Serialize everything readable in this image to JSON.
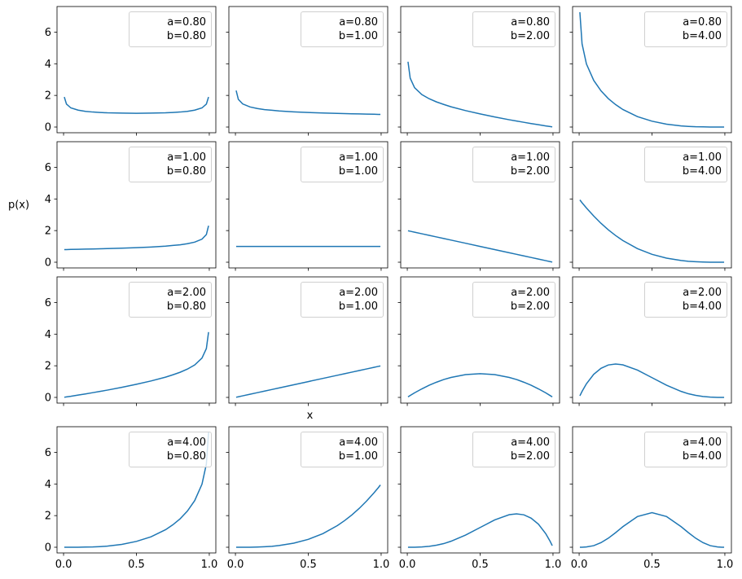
{
  "chart_data": [
    {
      "type": "line",
      "x": [
        0.005,
        0.02,
        0.05,
        0.1,
        0.15,
        0.2,
        0.25,
        0.3,
        0.4,
        0.5,
        0.6,
        0.7,
        0.75,
        0.8,
        0.85,
        0.9,
        0.95,
        0.98,
        0.995
      ],
      "series": [
        {
          "name": "a=0.80\nb=0.80",
          "color": "#1f77b4",
          "values": [
            1.9,
            1.45,
            1.21,
            1.07,
            0.99,
            0.95,
            0.92,
            0.9,
            0.88,
            0.87,
            0.88,
            0.9,
            0.92,
            0.95,
            0.99,
            1.07,
            1.21,
            1.45,
            1.9
          ]
        }
      ],
      "xlim": [
        -0.045,
        1.045
      ],
      "ylim": [
        -0.36,
        7.62
      ],
      "xticks": [
        0,
        0.5,
        1
      ],
      "yticks": [
        0,
        2,
        4,
        6
      ],
      "show_xticklabels": false,
      "show_yticklabels": true
    },
    {
      "type": "line",
      "x": [
        0.005,
        0.02,
        0.05,
        0.1,
        0.15,
        0.2,
        0.25,
        0.3,
        0.4,
        0.5,
        0.6,
        0.7,
        0.75,
        0.8,
        0.85,
        0.9,
        0.95,
        0.98,
        0.995
      ],
      "series": [
        {
          "name": "a=0.80\nb=1.00",
          "color": "#1f77b4",
          "values": [
            2.31,
            1.75,
            1.46,
            1.27,
            1.17,
            1.1,
            1.06,
            1.02,
            0.96,
            0.92,
            0.89,
            0.86,
            0.85,
            0.84,
            0.83,
            0.82,
            0.81,
            0.8,
            0.8
          ]
        }
      ],
      "xlim": [
        -0.045,
        1.045
      ],
      "ylim": [
        -0.36,
        7.62
      ],
      "xticks": [
        0,
        0.5,
        1
      ],
      "yticks": [
        0,
        2,
        4,
        6
      ],
      "show_xticklabels": false,
      "show_yticklabels": false
    },
    {
      "type": "line",
      "x": [
        0.005,
        0.02,
        0.05,
        0.1,
        0.15,
        0.2,
        0.25,
        0.3,
        0.4,
        0.5,
        0.6,
        0.7,
        0.75,
        0.8,
        0.85,
        0.9,
        0.95,
        0.98,
        0.995
      ],
      "series": [
        {
          "name": "a=0.80\nb=2.00",
          "color": "#1f77b4",
          "values": [
            4.13,
            3.09,
            2.49,
            2.05,
            1.79,
            1.59,
            1.43,
            1.28,
            1.04,
            0.83,
            0.64,
            0.46,
            0.38,
            0.3,
            0.22,
            0.15,
            0.07,
            0.03,
            0.01
          ]
        }
      ],
      "xlim": [
        -0.045,
        1.045
      ],
      "ylim": [
        -0.36,
        7.62
      ],
      "xticks": [
        0,
        0.5,
        1
      ],
      "yticks": [
        0,
        2,
        4,
        6
      ],
      "show_xticklabels": false,
      "show_yticklabels": false
    },
    {
      "type": "line",
      "x": [
        0.005,
        0.02,
        0.05,
        0.1,
        0.15,
        0.2,
        0.25,
        0.3,
        0.4,
        0.5,
        0.6,
        0.7,
        0.75,
        0.8,
        0.85,
        0.9,
        0.95,
        0.98,
        0.995
      ],
      "series": [
        {
          "name": "a=0.80\nb=4.00",
          "color": "#1f77b4",
          "values": [
            7.26,
            5.26,
            3.99,
            2.95,
            2.29,
            1.8,
            1.42,
            1.11,
            0.66,
            0.37,
            0.18,
            0.07,
            0.04,
            0.02,
            0.01,
            0,
            0,
            0,
            0
          ]
        }
      ],
      "xlim": [
        -0.045,
        1.045
      ],
      "ylim": [
        -0.36,
        7.62
      ],
      "xticks": [
        0,
        0.5,
        1
      ],
      "yticks": [
        0,
        2,
        4,
        6
      ],
      "show_xticklabels": false,
      "show_yticklabels": false
    },
    {
      "type": "line",
      "x": [
        0.005,
        0.02,
        0.05,
        0.1,
        0.15,
        0.2,
        0.25,
        0.3,
        0.4,
        0.5,
        0.6,
        0.7,
        0.75,
        0.8,
        0.85,
        0.9,
        0.95,
        0.98,
        0.995
      ],
      "series": [
        {
          "name": "a=1.00\nb=0.80",
          "color": "#1f77b4",
          "values": [
            0.8,
            0.8,
            0.81,
            0.82,
            0.83,
            0.84,
            0.85,
            0.86,
            0.89,
            0.92,
            0.96,
            1.02,
            1.06,
            1.1,
            1.17,
            1.27,
            1.46,
            1.75,
            2.31
          ]
        }
      ],
      "xlim": [
        -0.045,
        1.045
      ],
      "ylim": [
        -0.36,
        7.62
      ],
      "xticks": [
        0,
        0.5,
        1
      ],
      "yticks": [
        0,
        2,
        4,
        6
      ],
      "show_xticklabels": false,
      "show_yticklabels": true,
      "ylabel": "p(x)"
    },
    {
      "type": "line",
      "x": [
        0.005,
        0.02,
        0.05,
        0.1,
        0.15,
        0.2,
        0.25,
        0.3,
        0.4,
        0.5,
        0.6,
        0.7,
        0.75,
        0.8,
        0.85,
        0.9,
        0.95,
        0.98,
        0.995
      ],
      "series": [
        {
          "name": "a=1.00\nb=1.00",
          "color": "#1f77b4",
          "values": [
            1,
            1,
            1,
            1,
            1,
            1,
            1,
            1,
            1,
            1,
            1,
            1,
            1,
            1,
            1,
            1,
            1,
            1,
            1
          ]
        }
      ],
      "xlim": [
        -0.045,
        1.045
      ],
      "ylim": [
        -0.36,
        7.62
      ],
      "xticks": [
        0,
        0.5,
        1
      ],
      "yticks": [
        0,
        2,
        4,
        6
      ],
      "show_xticklabels": false,
      "show_yticklabels": false
    },
    {
      "type": "line",
      "x": [
        0.005,
        0.02,
        0.05,
        0.1,
        0.15,
        0.2,
        0.25,
        0.3,
        0.4,
        0.5,
        0.6,
        0.7,
        0.75,
        0.8,
        0.85,
        0.9,
        0.95,
        0.98,
        0.995
      ],
      "series": [
        {
          "name": "a=1.00\nb=2.00",
          "color": "#1f77b4",
          "values": [
            1.99,
            1.96,
            1.9,
            1.8,
            1.7,
            1.6,
            1.5,
            1.4,
            1.2,
            1,
            0.8,
            0.6,
            0.5,
            0.4,
            0.3,
            0.2,
            0.1,
            0.04,
            0.01
          ]
        }
      ],
      "xlim": [
        -0.045,
        1.045
      ],
      "ylim": [
        -0.36,
        7.62
      ],
      "xticks": [
        0,
        0.5,
        1
      ],
      "yticks": [
        0,
        2,
        4,
        6
      ],
      "show_xticklabels": false,
      "show_yticklabels": false
    },
    {
      "type": "line",
      "x": [
        0.005,
        0.02,
        0.05,
        0.1,
        0.15,
        0.2,
        0.25,
        0.3,
        0.4,
        0.5,
        0.6,
        0.7,
        0.75,
        0.8,
        0.85,
        0.9,
        0.95,
        0.98,
        0.995
      ],
      "series": [
        {
          "name": "a=1.00\nb=4.00",
          "color": "#1f77b4",
          "values": [
            3.94,
            3.76,
            3.43,
            2.92,
            2.46,
            2.05,
            1.69,
            1.37,
            0.86,
            0.5,
            0.26,
            0.11,
            0.06,
            0.03,
            0.01,
            0,
            0,
            0,
            0
          ]
        }
      ],
      "xlim": [
        -0.045,
        1.045
      ],
      "ylim": [
        -0.36,
        7.62
      ],
      "xticks": [
        0,
        0.5,
        1
      ],
      "yticks": [
        0,
        2,
        4,
        6
      ],
      "show_xticklabels": false,
      "show_yticklabels": false
    },
    {
      "type": "line",
      "x": [
        0.005,
        0.02,
        0.05,
        0.1,
        0.15,
        0.2,
        0.25,
        0.3,
        0.4,
        0.5,
        0.6,
        0.7,
        0.75,
        0.8,
        0.85,
        0.9,
        0.95,
        0.98,
        0.995
      ],
      "series": [
        {
          "name": "a=2.00\nb=0.80",
          "color": "#1f77b4",
          "values": [
            0.01,
            0.03,
            0.07,
            0.15,
            0.22,
            0.3,
            0.38,
            0.46,
            0.64,
            0.83,
            1.04,
            1.28,
            1.43,
            1.59,
            1.79,
            2.05,
            2.49,
            3.09,
            4.13
          ]
        }
      ],
      "xlim": [
        -0.045,
        1.045
      ],
      "ylim": [
        -0.36,
        7.62
      ],
      "xticks": [
        0,
        0.5,
        1
      ],
      "yticks": [
        0,
        2,
        4,
        6
      ],
      "show_xticklabels": false,
      "show_yticklabels": true
    },
    {
      "type": "line",
      "x": [
        0.005,
        0.02,
        0.05,
        0.1,
        0.15,
        0.2,
        0.25,
        0.3,
        0.4,
        0.5,
        0.6,
        0.7,
        0.75,
        0.8,
        0.85,
        0.9,
        0.95,
        0.98,
        0.995
      ],
      "series": [
        {
          "name": "a=2.00\nb=1.00",
          "color": "#1f77b4",
          "values": [
            0.01,
            0.04,
            0.1,
            0.2,
            0.3,
            0.4,
            0.5,
            0.6,
            0.8,
            1,
            1.2,
            1.4,
            1.5,
            1.6,
            1.7,
            1.8,
            1.9,
            1.96,
            1.99
          ]
        }
      ],
      "xlim": [
        -0.045,
        1.045
      ],
      "ylim": [
        -0.36,
        7.62
      ],
      "xticks": [
        0,
        0.5,
        1
      ],
      "yticks": [
        0,
        2,
        4,
        6
      ],
      "show_xticklabels": false,
      "show_yticklabels": false,
      "xlabel": "x"
    },
    {
      "type": "line",
      "x": [
        0.005,
        0.02,
        0.05,
        0.1,
        0.15,
        0.2,
        0.25,
        0.3,
        0.4,
        0.5,
        0.6,
        0.7,
        0.75,
        0.8,
        0.85,
        0.9,
        0.95,
        0.98,
        0.995
      ],
      "series": [
        {
          "name": "a=2.00\nb=2.00",
          "color": "#1f77b4",
          "values": [
            0.03,
            0.12,
            0.29,
            0.54,
            0.77,
            0.96,
            1.13,
            1.26,
            1.44,
            1.5,
            1.44,
            1.26,
            1.13,
            0.96,
            0.77,
            0.54,
            0.29,
            0.12,
            0.03
          ]
        }
      ],
      "xlim": [
        -0.045,
        1.045
      ],
      "ylim": [
        -0.36,
        7.62
      ],
      "xticks": [
        0,
        0.5,
        1
      ],
      "yticks": [
        0,
        2,
        4,
        6
      ],
      "show_xticklabels": false,
      "show_yticklabels": false
    },
    {
      "type": "line",
      "x": [
        0.005,
        0.02,
        0.05,
        0.1,
        0.15,
        0.2,
        0.25,
        0.3,
        0.4,
        0.5,
        0.6,
        0.7,
        0.75,
        0.8,
        0.85,
        0.9,
        0.95,
        0.98,
        0.995
      ],
      "series": [
        {
          "name": "a=2.00\nb=4.00",
          "color": "#1f77b4",
          "values": [
            0.1,
            0.38,
            0.86,
            1.46,
            1.84,
            2.05,
            2.11,
            2.06,
            1.73,
            1.25,
            0.77,
            0.38,
            0.23,
            0.13,
            0.06,
            0.02,
            0,
            0,
            0
          ]
        }
      ],
      "xlim": [
        -0.045,
        1.045
      ],
      "ylim": [
        -0.36,
        7.62
      ],
      "xticks": [
        0,
        0.5,
        1
      ],
      "yticks": [
        0,
        2,
        4,
        6
      ],
      "show_xticklabels": false,
      "show_yticklabels": false
    },
    {
      "type": "line",
      "x": [
        0.005,
        0.02,
        0.05,
        0.1,
        0.15,
        0.2,
        0.25,
        0.3,
        0.4,
        0.5,
        0.6,
        0.7,
        0.75,
        0.8,
        0.85,
        0.9,
        0.95,
        0.98,
        0.995
      ],
      "series": [
        {
          "name": "a=4.00\nb=0.80",
          "color": "#1f77b4",
          "values": [
            0,
            0,
            0,
            0,
            0.01,
            0.02,
            0.04,
            0.07,
            0.18,
            0.37,
            0.66,
            1.11,
            1.42,
            1.8,
            2.29,
            2.95,
            3.99,
            5.26,
            7.26
          ]
        }
      ],
      "xlim": [
        -0.045,
        1.045
      ],
      "ylim": [
        -0.36,
        7.62
      ],
      "xticks": [
        {
          "value": 0,
          "label": "0.0"
        },
        0.5,
        {
          "value": 1,
          "label": "1.0"
        }
      ],
      "yticks": [
        0,
        2,
        4,
        6
      ],
      "show_xticklabels": true,
      "show_yticklabels": true
    },
    {
      "type": "line",
      "x": [
        0.005,
        0.02,
        0.05,
        0.1,
        0.15,
        0.2,
        0.25,
        0.3,
        0.4,
        0.5,
        0.6,
        0.7,
        0.75,
        0.8,
        0.85,
        0.9,
        0.95,
        0.98,
        0.995
      ],
      "series": [
        {
          "name": "a=4.00\nb=1.00",
          "color": "#1f77b4",
          "values": [
            0,
            0,
            0,
            0,
            0.01,
            0.03,
            0.06,
            0.11,
            0.26,
            0.5,
            0.86,
            1.37,
            1.69,
            2.05,
            2.46,
            2.92,
            3.43,
            3.76,
            3.94
          ]
        }
      ],
      "xlim": [
        -0.045,
        1.045
      ],
      "ylim": [
        -0.36,
        7.62
      ],
      "xticks": [
        {
          "value": 0,
          "label": "0.0"
        },
        0.5,
        {
          "value": 1,
          "label": "1.0"
        }
      ],
      "yticks": [
        0,
        2,
        4,
        6
      ],
      "show_xticklabels": true,
      "show_yticklabels": false
    },
    {
      "type": "line",
      "x": [
        0.005,
        0.02,
        0.05,
        0.1,
        0.15,
        0.2,
        0.25,
        0.3,
        0.4,
        0.5,
        0.6,
        0.7,
        0.75,
        0.8,
        0.85,
        0.9,
        0.95,
        0.98,
        0.995
      ],
      "series": [
        {
          "name": "a=4.00\nb=2.00",
          "color": "#1f77b4",
          "values": [
            0,
            0,
            0,
            0.02,
            0.06,
            0.13,
            0.23,
            0.38,
            0.77,
            1.25,
            1.73,
            2.06,
            2.11,
            2.05,
            1.84,
            1.46,
            0.86,
            0.38,
            0.1
          ]
        }
      ],
      "xlim": [
        -0.045,
        1.045
      ],
      "ylim": [
        -0.36,
        7.62
      ],
      "xticks": [
        {
          "value": 0,
          "label": "0.0"
        },
        0.5,
        {
          "value": 1,
          "label": "1.0"
        }
      ],
      "yticks": [
        0,
        2,
        4,
        6
      ],
      "show_xticklabels": true,
      "show_yticklabels": false
    },
    {
      "type": "line",
      "x": [
        0.005,
        0.02,
        0.05,
        0.1,
        0.15,
        0.2,
        0.25,
        0.3,
        0.4,
        0.5,
        0.6,
        0.7,
        0.75,
        0.8,
        0.85,
        0.9,
        0.95,
        0.98,
        0.995
      ],
      "series": [
        {
          "name": "a=4.00\nb=4.00",
          "color": "#1f77b4",
          "values": [
            0,
            0,
            0.02,
            0.1,
            0.29,
            0.57,
            0.92,
            1.3,
            1.94,
            2.19,
            1.94,
            1.3,
            0.92,
            0.57,
            0.29,
            0.1,
            0.02,
            0,
            0
          ]
        }
      ],
      "xlim": [
        -0.045,
        1.045
      ],
      "ylim": [
        -0.36,
        7.62
      ],
      "xticks": [
        {
          "value": 0,
          "label": "0.0"
        },
        0.5,
        {
          "value": 1,
          "label": "1.0"
        }
      ],
      "yticks": [
        0,
        2,
        4,
        6
      ],
      "show_xticklabels": true,
      "show_yticklabels": false
    }
  ]
}
